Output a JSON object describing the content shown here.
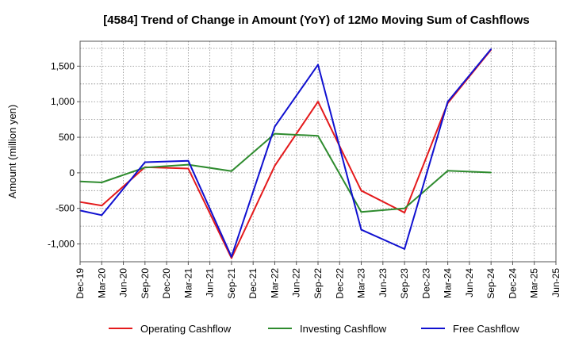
{
  "chart_data": {
    "type": "line",
    "title": "[4584]  Trend of Change in Amount (YoY) of 12Mo Moving Sum of Cashflows",
    "ylabel": "Amount (million yen)",
    "xlabel": "",
    "ylim": [
      -1250,
      1850
    ],
    "yticks": [
      -1000,
      -500,
      0,
      500,
      1000,
      1500
    ],
    "ytick_labels": [
      "-1,000",
      "-500",
      "0",
      "500",
      "1,000",
      "1,500"
    ],
    "categories": [
      "Dec-19",
      "Mar-20",
      "Jun-20",
      "Sep-20",
      "Dec-20",
      "Mar-21",
      "Jun-21",
      "Sep-21",
      "Dec-21",
      "Mar-22",
      "Jun-22",
      "Sep-22",
      "Dec-22",
      "Mar-23",
      "Jun-23",
      "Sep-23",
      "Dec-23",
      "Mar-24",
      "Jun-24",
      "Sep-24",
      "Dec-24",
      "Mar-25"
    ],
    "x_positions": [
      "Dec-19",
      "Mar-20",
      "Jun-20",
      "Sep-20",
      "Dec-20",
      "Mar-21",
      "Jun-21",
      "Sep-21",
      "Dec-21",
      "Mar-22",
      "Jun-22",
      "Sep-22",
      "Dec-22",
      "Mar-23",
      "Jun-23",
      "Sep-23",
      "Dec-23",
      "Mar-24",
      "Jun-24",
      "Sep-24",
      "Dec-24",
      "Mar-25",
      "Jun-25"
    ],
    "grid": true,
    "legend_position": "bottom",
    "series": [
      {
        "name": "Operating Cashflow",
        "color": "#e41a1c",
        "points": [
          [
            "Dec-19",
            -410
          ],
          [
            "Mar-20",
            -460
          ],
          [
            "Sep-20",
            80
          ],
          [
            "Mar-21",
            60
          ],
          [
            "Sep-21",
            -1200
          ],
          [
            "Mar-22",
            100
          ],
          [
            "Sep-22",
            1000
          ],
          [
            "Mar-23",
            -250
          ],
          [
            "Sep-23",
            -560
          ],
          [
            "Mar-24",
            980
          ],
          [
            "Sep-24",
            1730
          ]
        ]
      },
      {
        "name": "Investing Cashflow",
        "color": "#2e8b2e",
        "points": [
          [
            "Dec-19",
            -120
          ],
          [
            "Mar-20",
            -135
          ],
          [
            "Sep-20",
            75
          ],
          [
            "Mar-21",
            115
          ],
          [
            "Sep-21",
            25
          ],
          [
            "Mar-22",
            550
          ],
          [
            "Sep-22",
            520
          ],
          [
            "Mar-23",
            -550
          ],
          [
            "Sep-23",
            -500
          ],
          [
            "Mar-24",
            30
          ],
          [
            "Sep-24",
            5
          ]
        ]
      },
      {
        "name": "Free Cashflow",
        "color": "#1010d0",
        "points": [
          [
            "Dec-19",
            -530
          ],
          [
            "Mar-20",
            -595
          ],
          [
            "Sep-20",
            150
          ],
          [
            "Mar-21",
            170
          ],
          [
            "Sep-21",
            -1180
          ],
          [
            "Mar-22",
            650
          ],
          [
            "Sep-22",
            1520
          ],
          [
            "Mar-23",
            -800
          ],
          [
            "Sep-23",
            -1070
          ],
          [
            "Mar-24",
            1000
          ],
          [
            "Sep-24",
            1740
          ]
        ]
      }
    ]
  }
}
